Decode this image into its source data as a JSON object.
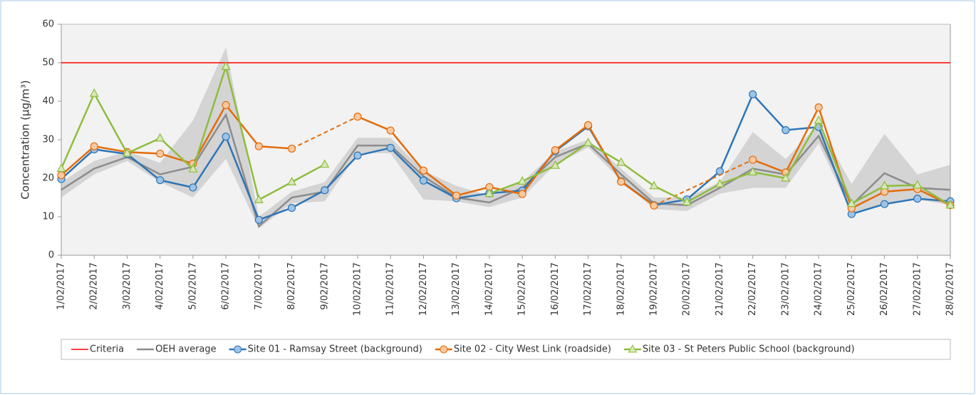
{
  "chart_data": {
    "type": "line",
    "y_label": "Concentration (µg/m³)",
    "categories": [
      "1/02/2017",
      "2/02/2017",
      "3/02/2017",
      "4/02/2017",
      "5/02/2017",
      "6/02/2017",
      "7/02/2017",
      "8/02/2017",
      "9/02/2017",
      "10/02/2017",
      "11/02/2017",
      "12/02/2017",
      "13/02/2017",
      "14/02/2017",
      "15/02/2017",
      "16/02/2017",
      "17/02/2017",
      "18/02/2017",
      "19/02/2017",
      "20/02/2017",
      "21/02/2017",
      "22/02/2017",
      "23/02/2017",
      "24/02/2017",
      "25/02/2017",
      "26/02/2017",
      "27/02/2017",
      "28/02/2017"
    ],
    "ylim": [
      0,
      60
    ],
    "yticks": [
      0,
      10,
      20,
      30,
      40,
      50,
      60
    ],
    "band": {
      "color": "#d4d4d4",
      "upper": [
        19,
        24.5,
        27,
        24,
        35,
        54,
        10,
        16.5,
        19,
        30.5,
        30.5,
        22,
        18,
        15.5,
        19,
        27,
        30,
        22.5,
        15,
        15,
        19,
        32,
        25,
        34,
        18.5,
        31.5,
        21,
        23.5
      ],
      "lower": [
        15,
        21,
        24.5,
        19,
        15,
        25,
        7,
        13.5,
        14,
        26.5,
        26.5,
        14.5,
        14,
        12.5,
        15,
        23.5,
        28,
        19.5,
        12,
        11.5,
        16,
        17.5,
        17.5,
        29,
        11,
        13,
        14.5,
        13
      ]
    },
    "series": [
      {
        "name": "Criteria",
        "color": "#ff0000",
        "marker": "none",
        "values": [
          50,
          50,
          50,
          50,
          50,
          50,
          50,
          50,
          50,
          50,
          50,
          50,
          50,
          50,
          50,
          50,
          50,
          50,
          50,
          50,
          50,
          50,
          50,
          50,
          50,
          50,
          50,
          50
        ]
      },
      {
        "name": "OEH average",
        "color": "#8c8c8c",
        "marker": "none",
        "values": [
          17,
          22.5,
          25.5,
          21,
          23,
          36.5,
          7.5,
          15,
          16.5,
          28.5,
          28.5,
          20.5,
          15,
          13.7,
          17.5,
          25.5,
          29,
          21,
          13.5,
          13,
          17.5,
          22.5,
          21,
          31,
          13,
          21.3,
          17.5,
          17
        ]
      },
      {
        "name": "Site 01 - Ramsay Street (background)",
        "color": "#2e75b6",
        "fill": "#9dc3e6",
        "marker": "circle",
        "values": [
          19.8,
          27.5,
          26.3,
          19.5,
          17.6,
          30.8,
          9.2,
          12.3,
          16.9,
          25.9,
          27.9,
          19.4,
          14.8,
          16.1,
          16.8,
          27,
          33.5,
          19.2,
          13,
          14.5,
          21.8,
          41.8,
          32.5,
          33.3,
          10.7,
          13.3,
          14.7,
          14
        ]
      },
      {
        "name": "Site 02 - City West Link (roadside)",
        "color": "#e46c0a",
        "fill": "#f8c9a0",
        "marker": "circle",
        "values": [
          20.8,
          28.3,
          26.8,
          26.4,
          23.8,
          39,
          28.3,
          27.7,
          null,
          36,
          32.4,
          22,
          15.5,
          17.7,
          15.9,
          27.3,
          33.8,
          19.1,
          12.9,
          null,
          null,
          24.8,
          21.5,
          38.4,
          12.2,
          16.5,
          17.2,
          13
        ]
      },
      {
        "name": "Site 03 - St Peters Public School (background)",
        "color": "#8fbc3f",
        "fill": "#d7e9b8",
        "marker": "triangle",
        "values": [
          22.5,
          42,
          26.5,
          30.4,
          22.4,
          49,
          14.4,
          19,
          23.6,
          null,
          null,
          null,
          null,
          16,
          19.2,
          23.3,
          29.2,
          24.1,
          18,
          13.8,
          18.5,
          21.6,
          20,
          35,
          13.4,
          18,
          18.2,
          13
        ]
      }
    ]
  }
}
